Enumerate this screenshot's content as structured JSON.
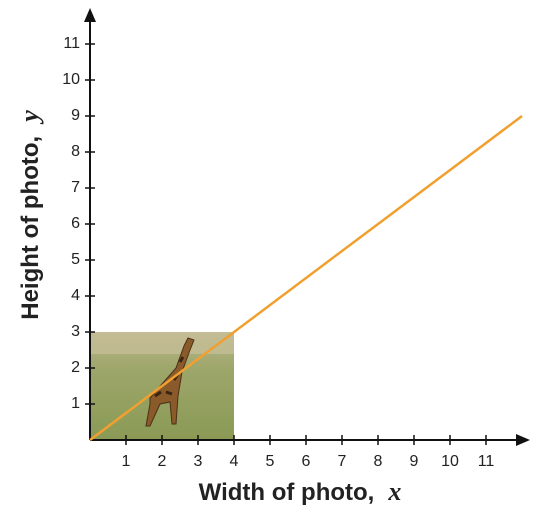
{
  "chart_data": {
    "type": "line",
    "xlabel": "Width of photo,",
    "xlabel_var": "x",
    "ylabel": "Height of photo,",
    "ylabel_var": "y",
    "x": [
      0,
      12
    ],
    "series": [
      {
        "values": [
          0,
          9
        ],
        "color": "#f0a030"
      }
    ],
    "xlim": [
      0,
      12
    ],
    "ylim": [
      0,
      11.5
    ],
    "xticks": [
      1,
      2,
      3,
      4,
      5,
      6,
      7,
      8,
      9,
      10,
      11
    ],
    "yticks": [
      1,
      2,
      3,
      4,
      5,
      6,
      7,
      8,
      9,
      10,
      11
    ]
  }
}
